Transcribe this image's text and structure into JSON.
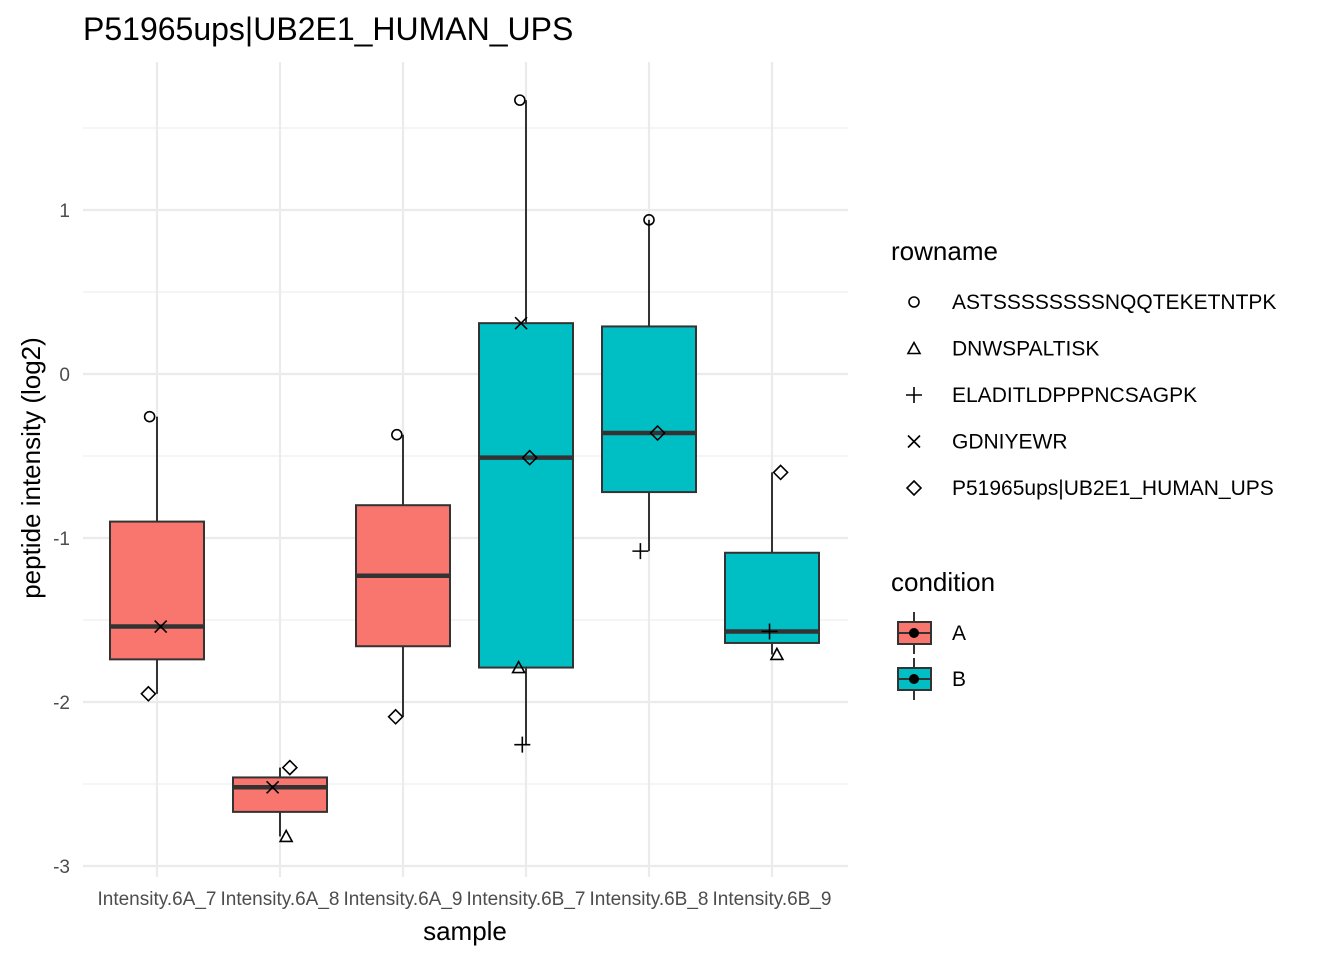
{
  "chart_data": {
    "type": "boxplot",
    "title": "P51965ups|UB2E1_HUMAN_UPS",
    "xlabel": "sample",
    "ylabel": "peptide intensity (log2)",
    "ylim": [
      -3,
      1.7
    ],
    "y_ticks": [
      -3,
      -2,
      -1,
      0,
      1
    ],
    "grid": true,
    "legend_position": "right",
    "categories": [
      "Intensity.6A_7",
      "Intensity.6A_8",
      "Intensity.6A_9",
      "Intensity.6B_7",
      "Intensity.6B_8",
      "Intensity.6B_9"
    ],
    "colors": {
      "A": "#F8766D",
      "B": "#00BFC4"
    },
    "boxes": [
      {
        "sample": "Intensity.6A_7",
        "condition": "A",
        "whisker_low": -1.95,
        "q1": -1.74,
        "median": -1.54,
        "q3": -0.9,
        "whisker_high": -0.26
      },
      {
        "sample": "Intensity.6A_8",
        "condition": "A",
        "whisker_low": -2.82,
        "q1": -2.67,
        "median": -2.52,
        "q3": -2.46,
        "whisker_high": -2.4
      },
      {
        "sample": "Intensity.6A_9",
        "condition": "A",
        "whisker_low": -2.09,
        "q1": -1.66,
        "median": -1.23,
        "q3": -0.8,
        "whisker_high": -0.37
      },
      {
        "sample": "Intensity.6B_7",
        "condition": "B",
        "whisker_low": -2.26,
        "q1": -1.79,
        "median": -0.51,
        "q3": 0.31,
        "whisker_high": 1.67
      },
      {
        "sample": "Intensity.6B_8",
        "condition": "B",
        "whisker_low": -1.08,
        "q1": -0.72,
        "median": -0.36,
        "q3": 0.29,
        "whisker_high": 0.94
      },
      {
        "sample": "Intensity.6B_9",
        "condition": "B",
        "whisker_low": -1.71,
        "q1": -1.64,
        "median": -1.57,
        "q3": -1.09,
        "whisker_high": -0.6
      }
    ],
    "points": [
      {
        "sample": "Intensity.6A_7",
        "rowname": "ASTSSSSSSSSNQQTEKETNTPK",
        "y": -0.26,
        "dx": -0.06
      },
      {
        "sample": "Intensity.6A_7",
        "rowname": "GDNIYEWR",
        "y": -1.54,
        "dx": 0.03
      },
      {
        "sample": "Intensity.6A_7",
        "rowname": "P51965ups|UB2E1_HUMAN_UPS",
        "y": -1.95,
        "dx": -0.07
      },
      {
        "sample": "Intensity.6A_8",
        "rowname": "P51965ups|UB2E1_HUMAN_UPS",
        "y": -2.4,
        "dx": 0.08
      },
      {
        "sample": "Intensity.6A_8",
        "rowname": "GDNIYEWR",
        "y": -2.52,
        "dx": -0.06
      },
      {
        "sample": "Intensity.6A_8",
        "rowname": "DNWSPALTISK",
        "y": -2.82,
        "dx": 0.05
      },
      {
        "sample": "Intensity.6A_9",
        "rowname": "ASTSSSSSSSSNQQTEKETNTPK",
        "y": -0.37,
        "dx": -0.05
      },
      {
        "sample": "Intensity.6A_9",
        "rowname": "P51965ups|UB2E1_HUMAN_UPS",
        "y": -2.09,
        "dx": -0.06
      },
      {
        "sample": "Intensity.6B_7",
        "rowname": "ASTSSSSSSSSNQQTEKETNTPK",
        "y": 1.67,
        "dx": -0.05
      },
      {
        "sample": "Intensity.6B_7",
        "rowname": "GDNIYEWR",
        "y": 0.31,
        "dx": -0.04
      },
      {
        "sample": "Intensity.6B_7",
        "rowname": "P51965ups|UB2E1_HUMAN_UPS",
        "y": -0.51,
        "dx": 0.03
      },
      {
        "sample": "Intensity.6B_7",
        "rowname": "DNWSPALTISK",
        "y": -1.79,
        "dx": -0.06
      },
      {
        "sample": "Intensity.6B_7",
        "rowname": "ELADITLDPPPNCSAGPK",
        "y": -2.26,
        "dx": -0.03
      },
      {
        "sample": "Intensity.6B_8",
        "rowname": "ASTSSSSSSSSNQQTEKETNTPK",
        "y": 0.94,
        "dx": 0.0
      },
      {
        "sample": "Intensity.6B_8",
        "rowname": "P51965ups|UB2E1_HUMAN_UPS",
        "y": -0.36,
        "dx": 0.07
      },
      {
        "sample": "Intensity.6B_8",
        "rowname": "ELADITLDPPPNCSAGPK",
        "y": -1.08,
        "dx": -0.07
      },
      {
        "sample": "Intensity.6B_9",
        "rowname": "P51965ups|UB2E1_HUMAN_UPS",
        "y": -0.6,
        "dx": 0.07
      },
      {
        "sample": "Intensity.6B_9",
        "rowname": "ELADITLDPPPNCSAGPK",
        "y": -1.57,
        "dx": -0.02
      },
      {
        "sample": "Intensity.6B_9",
        "rowname": "DNWSPALTISK",
        "y": -1.71,
        "dx": 0.04
      }
    ],
    "legend_rowname": {
      "title": "rowname",
      "entries": [
        {
          "label": "ASTSSSSSSSSNQQTEKETNTPK",
          "shape": "circle"
        },
        {
          "label": "DNWSPALTISK",
          "shape": "triangle"
        },
        {
          "label": "ELADITLDPPPNCSAGPK",
          "shape": "plus"
        },
        {
          "label": "GDNIYEWR",
          "shape": "cross"
        },
        {
          "label": "P51965ups|UB2E1_HUMAN_UPS",
          "shape": "diamond"
        }
      ]
    },
    "legend_condition": {
      "title": "condition",
      "entries": [
        {
          "label": "A",
          "color": "#F8766D"
        },
        {
          "label": "B",
          "color": "#00BFC4"
        }
      ]
    }
  }
}
